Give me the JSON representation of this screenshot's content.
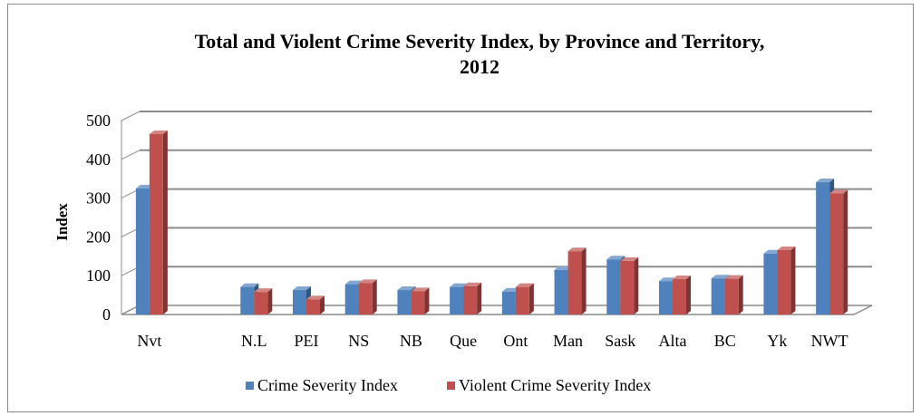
{
  "chart_data": {
    "type": "bar",
    "title_line1": "Total and Violent Crime Severity Index, by Province and Territory,",
    "title_line2": "2012",
    "ylabel": "Index",
    "xlabel": "",
    "ylim": [
      0,
      500
    ],
    "yticks": [
      0,
      100,
      200,
      300,
      400,
      500
    ],
    "ytick_labels": [
      "0",
      "100",
      "200",
      "300",
      "400",
      "500"
    ],
    "grid": true,
    "legend_position": "bottom",
    "categories": [
      "Nvt",
      "",
      "N.L",
      "PEI",
      "NS",
      "NB",
      "Que",
      "Ont",
      "Man",
      "Sask",
      "Alta",
      "BC",
      "Yk",
      "NWT"
    ],
    "series": [
      {
        "name": "Crime Severity Index",
        "color": "#4f81bd",
        "values": [
          325,
          null,
          71,
          63,
          78,
          63,
          71,
          59,
          115,
          142,
          86,
          93,
          157,
          341
        ]
      },
      {
        "name": "Violent Crime Severity Index",
        "color": "#c0504d",
        "values": [
          465,
          null,
          58,
          39,
          81,
          60,
          73,
          71,
          163,
          138,
          91,
          92,
          166,
          312
        ]
      }
    ]
  }
}
